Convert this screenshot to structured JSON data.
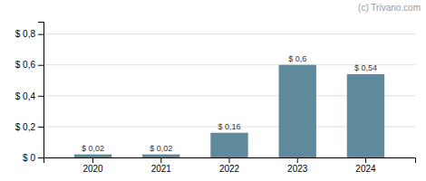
{
  "chart_data": {
    "type": "bar",
    "categories": [
      "2020",
      "2021",
      "2022",
      "2023",
      "2024"
    ],
    "values": [
      0.02,
      0.02,
      0.16,
      0.6,
      0.54
    ],
    "value_labels": [
      "$ 0,02",
      "$ 0,02",
      "$ 0,16",
      "$ 0,6",
      "$ 0,54"
    ],
    "data_labels": true,
    "color": "#5f8a9b",
    "ylim": [
      0,
      0.88
    ],
    "yticks": [
      {
        "value": 0.0,
        "label": "$ 0"
      },
      {
        "value": 0.2,
        "label": "$ 0,2"
      },
      {
        "value": 0.4,
        "label": "$ 0,4"
      },
      {
        "value": 0.6,
        "label": "$ 0,6"
      },
      {
        "value": 0.8,
        "label": "$ 0,8"
      }
    ],
    "grid": true,
    "annotations": [
      "(c) Trivano.com"
    ]
  }
}
